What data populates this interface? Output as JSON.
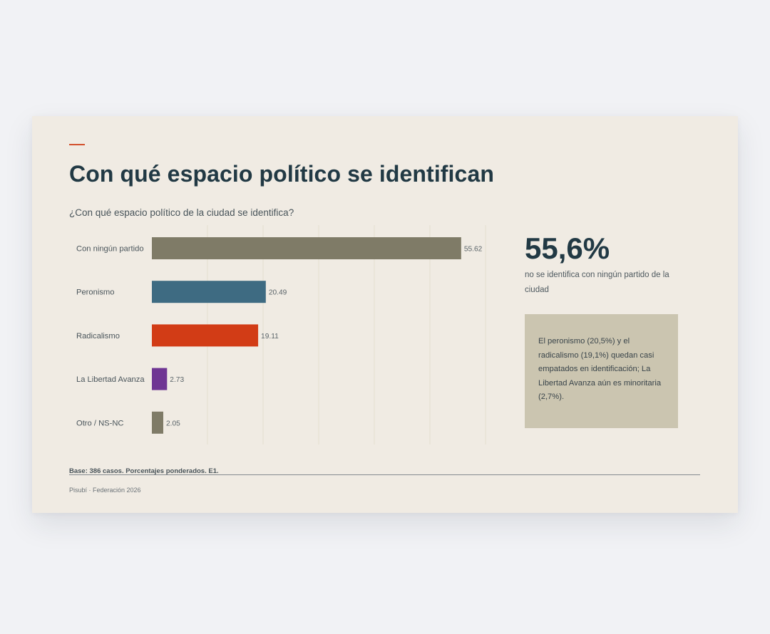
{
  "title": "Con qué espacio político se identifican",
  "subtitle": "¿Con qué espacio político de la ciudad se identifica?",
  "highlight": {
    "value": "55,6%",
    "description": "no se identifica con ningún partido de la ciudad"
  },
  "note": "El peronismo (20,5%) y el radicalismo (19,1%) quedan casi empatados en identificación; La Libertad Avanza aún es minoritaria (2,7%).",
  "base_note": "Base: 386 casos. Porcentajes ponderados. E1.",
  "footer": "Pisubí · Federación 2026",
  "colors": {
    "title": "#213944",
    "accent": "#d24f2b",
    "background": "#f0ebe3",
    "note_box": "#cbc5b0",
    "gridline": "#e3dfcf"
  },
  "chart_data": {
    "type": "bar",
    "orientation": "horizontal",
    "categories": [
      "Con ningún partido",
      "Peronismo",
      "Radicalismo",
      "La Libertad Avanza",
      "Otro / NS-NC"
    ],
    "values": [
      55.62,
      20.49,
      19.11,
      2.73,
      2.05
    ],
    "value_labels": [
      "55.62",
      "20.49",
      "19.11",
      "2.73",
      "2.05"
    ],
    "colors": [
      "#7f7b67",
      "#3e6b82",
      "#d23c16",
      "#6f3593",
      "#7f7b67"
    ],
    "xlim": [
      0,
      60
    ],
    "grid": true,
    "title": "",
    "xlabel": "",
    "ylabel": ""
  }
}
